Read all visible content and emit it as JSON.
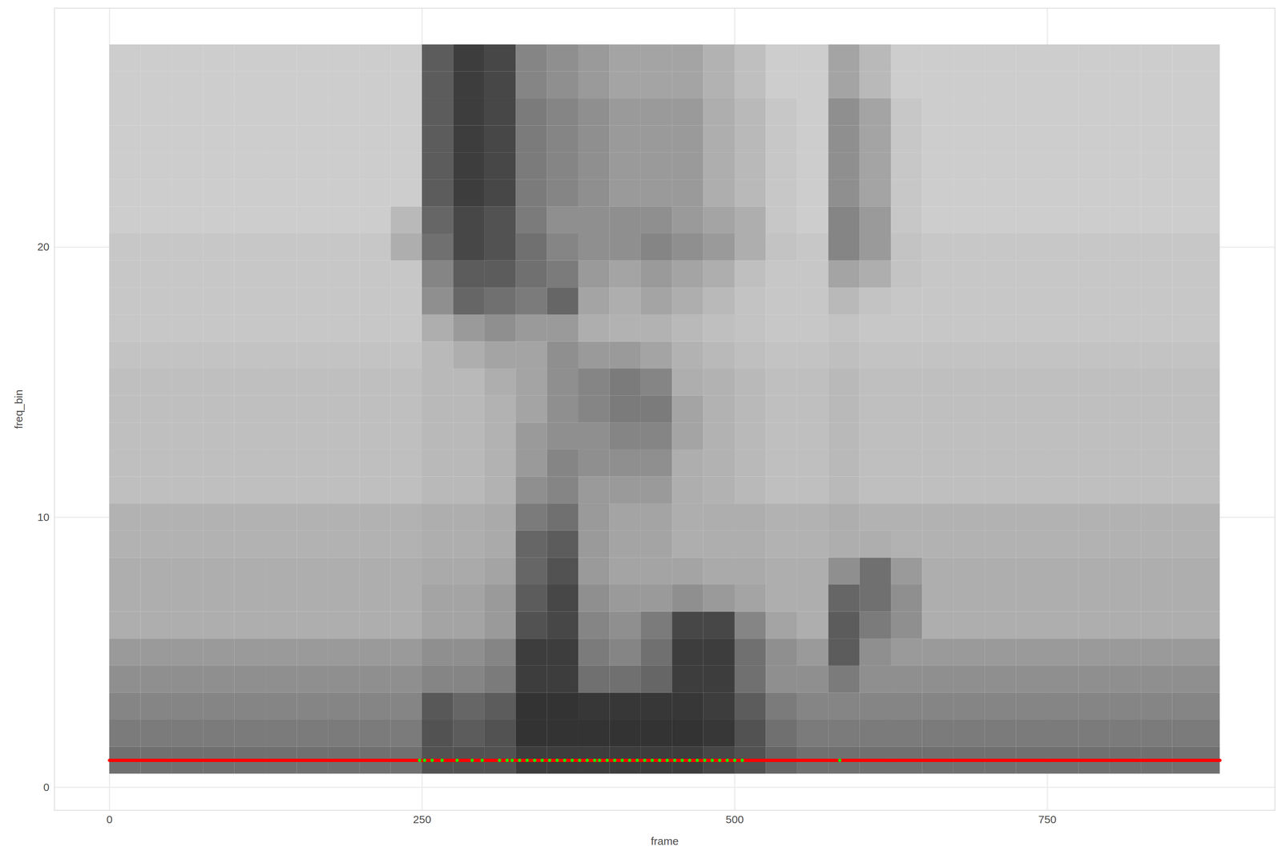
{
  "chart_data": {
    "type": "heatmap",
    "x_label": "frame",
    "y_label": "freq_bin",
    "xlim": [
      -44,
      932
    ],
    "ylim": [
      -0.85,
      28.85
    ],
    "xticks": [
      0,
      250,
      500,
      750
    ],
    "yticks": [
      0,
      10,
      20
    ],
    "grid": true,
    "fill_range": [
      0,
      1
    ],
    "frame_edges": [
      0,
      25,
      50,
      75,
      100,
      125,
      150,
      175,
      200,
      225,
      250,
      275,
      300,
      325,
      350,
      375,
      400,
      425,
      450,
      475,
      500,
      525,
      550,
      575,
      600,
      625,
      650,
      675,
      700,
      725,
      750,
      775,
      800,
      825,
      850,
      875,
      888
    ],
    "freq_edges": [
      0.5,
      1.5,
      2.5,
      3.5,
      4.5,
      5.5,
      6.5,
      7.5,
      8.5,
      9.5,
      10.5,
      11.5,
      12.5,
      13.5,
      14.5,
      15.5,
      16.5,
      17.5,
      18.5,
      19.5,
      20.5,
      21.5,
      22.5,
      23.5,
      24.5,
      25.5,
      26.5,
      27.5
    ],
    "intensity": [
      [
        0.6,
        0.6,
        0.6,
        0.6,
        0.6,
        0.6,
        0.6,
        0.6,
        0.6,
        0.6,
        0.75,
        0.75,
        0.75,
        0.85,
        0.85,
        0.85,
        0.85,
        0.85,
        0.85,
        0.8,
        0.75,
        0.65,
        0.6,
        0.6,
        0.6,
        0.6,
        0.6,
        0.6,
        0.6,
        0.6,
        0.6,
        0.6,
        0.6,
        0.6,
        0.6,
        0.6
      ],
      [
        0.55,
        0.55,
        0.55,
        0.55,
        0.55,
        0.55,
        0.55,
        0.55,
        0.55,
        0.55,
        0.75,
        0.7,
        0.75,
        0.9,
        0.9,
        0.9,
        0.9,
        0.9,
        0.9,
        0.88,
        0.75,
        0.6,
        0.55,
        0.55,
        0.55,
        0.55,
        0.55,
        0.55,
        0.55,
        0.55,
        0.55,
        0.55,
        0.55,
        0.55,
        0.55,
        0.55
      ],
      [
        0.5,
        0.5,
        0.5,
        0.5,
        0.5,
        0.5,
        0.5,
        0.5,
        0.5,
        0.5,
        0.72,
        0.65,
        0.7,
        0.9,
        0.9,
        0.88,
        0.88,
        0.88,
        0.88,
        0.85,
        0.7,
        0.55,
        0.5,
        0.5,
        0.5,
        0.5,
        0.5,
        0.5,
        0.5,
        0.5,
        0.5,
        0.5,
        0.5,
        0.5,
        0.5,
        0.5
      ],
      [
        0.45,
        0.45,
        0.45,
        0.45,
        0.45,
        0.45,
        0.45,
        0.45,
        0.45,
        0.45,
        0.5,
        0.5,
        0.55,
        0.85,
        0.85,
        0.6,
        0.6,
        0.65,
        0.85,
        0.85,
        0.6,
        0.45,
        0.45,
        0.55,
        0.45,
        0.45,
        0.45,
        0.45,
        0.45,
        0.45,
        0.45,
        0.45,
        0.45,
        0.45,
        0.45,
        0.45
      ],
      [
        0.4,
        0.4,
        0.4,
        0.4,
        0.4,
        0.4,
        0.4,
        0.4,
        0.4,
        0.4,
        0.45,
        0.45,
        0.5,
        0.85,
        0.85,
        0.55,
        0.5,
        0.6,
        0.85,
        0.85,
        0.6,
        0.45,
        0.4,
        0.7,
        0.45,
        0.4,
        0.4,
        0.4,
        0.4,
        0.4,
        0.4,
        0.4,
        0.4,
        0.4,
        0.4,
        0.4
      ],
      [
        0.3,
        0.3,
        0.3,
        0.3,
        0.3,
        0.3,
        0.3,
        0.3,
        0.3,
        0.3,
        0.35,
        0.35,
        0.4,
        0.75,
        0.8,
        0.5,
        0.45,
        0.55,
        0.8,
        0.8,
        0.5,
        0.35,
        0.3,
        0.7,
        0.55,
        0.45,
        0.3,
        0.3,
        0.3,
        0.3,
        0.3,
        0.3,
        0.3,
        0.3,
        0.3,
        0.3
      ],
      [
        0.3,
        0.3,
        0.3,
        0.3,
        0.3,
        0.3,
        0.3,
        0.3,
        0.3,
        0.3,
        0.35,
        0.35,
        0.4,
        0.7,
        0.8,
        0.45,
        0.4,
        0.4,
        0.45,
        0.4,
        0.35,
        0.3,
        0.3,
        0.65,
        0.6,
        0.45,
        0.3,
        0.3,
        0.3,
        0.3,
        0.3,
        0.3,
        0.3,
        0.3,
        0.3,
        0.3
      ],
      [
        0.3,
        0.3,
        0.3,
        0.3,
        0.3,
        0.3,
        0.3,
        0.3,
        0.3,
        0.3,
        0.32,
        0.32,
        0.35,
        0.65,
        0.75,
        0.4,
        0.35,
        0.35,
        0.35,
        0.32,
        0.32,
        0.3,
        0.3,
        0.45,
        0.6,
        0.4,
        0.3,
        0.3,
        0.3,
        0.3,
        0.3,
        0.3,
        0.3,
        0.3,
        0.3,
        0.3
      ],
      [
        0.28,
        0.28,
        0.28,
        0.28,
        0.28,
        0.28,
        0.28,
        0.28,
        0.28,
        0.28,
        0.3,
        0.3,
        0.32,
        0.65,
        0.7,
        0.4,
        0.35,
        0.35,
        0.3,
        0.3,
        0.3,
        0.28,
        0.28,
        0.3,
        0.3,
        0.28,
        0.28,
        0.28,
        0.28,
        0.28,
        0.28,
        0.28,
        0.28,
        0.28,
        0.28,
        0.28
      ],
      [
        0.28,
        0.28,
        0.28,
        0.28,
        0.28,
        0.28,
        0.28,
        0.28,
        0.28,
        0.28,
        0.3,
        0.3,
        0.32,
        0.55,
        0.6,
        0.4,
        0.35,
        0.35,
        0.3,
        0.3,
        0.3,
        0.28,
        0.28,
        0.3,
        0.28,
        0.28,
        0.28,
        0.28,
        0.28,
        0.28,
        0.28,
        0.28,
        0.28,
        0.28,
        0.28,
        0.28
      ],
      [
        0.22,
        0.22,
        0.22,
        0.22,
        0.22,
        0.22,
        0.22,
        0.22,
        0.22,
        0.22,
        0.25,
        0.25,
        0.28,
        0.45,
        0.5,
        0.4,
        0.4,
        0.4,
        0.3,
        0.28,
        0.25,
        0.22,
        0.22,
        0.25,
        0.22,
        0.22,
        0.22,
        0.22,
        0.22,
        0.22,
        0.22,
        0.22,
        0.22,
        0.22,
        0.22,
        0.22
      ],
      [
        0.22,
        0.22,
        0.22,
        0.22,
        0.22,
        0.22,
        0.22,
        0.22,
        0.22,
        0.22,
        0.25,
        0.25,
        0.28,
        0.4,
        0.5,
        0.45,
        0.45,
        0.45,
        0.3,
        0.28,
        0.25,
        0.22,
        0.22,
        0.25,
        0.22,
        0.22,
        0.22,
        0.22,
        0.22,
        0.22,
        0.22,
        0.22,
        0.22,
        0.22,
        0.22,
        0.22
      ],
      [
        0.22,
        0.22,
        0.22,
        0.22,
        0.22,
        0.22,
        0.22,
        0.22,
        0.22,
        0.22,
        0.25,
        0.25,
        0.28,
        0.4,
        0.45,
        0.45,
        0.5,
        0.5,
        0.35,
        0.28,
        0.25,
        0.22,
        0.22,
        0.25,
        0.22,
        0.22,
        0.22,
        0.22,
        0.22,
        0.22,
        0.22,
        0.22,
        0.22,
        0.22,
        0.22,
        0.22
      ],
      [
        0.22,
        0.22,
        0.22,
        0.22,
        0.22,
        0.22,
        0.22,
        0.22,
        0.22,
        0.22,
        0.25,
        0.25,
        0.28,
        0.35,
        0.45,
        0.5,
        0.55,
        0.55,
        0.35,
        0.28,
        0.25,
        0.22,
        0.22,
        0.25,
        0.22,
        0.22,
        0.22,
        0.22,
        0.22,
        0.22,
        0.22,
        0.22,
        0.22,
        0.22,
        0.22,
        0.22
      ],
      [
        0.22,
        0.22,
        0.22,
        0.22,
        0.22,
        0.22,
        0.22,
        0.22,
        0.22,
        0.22,
        0.25,
        0.25,
        0.3,
        0.35,
        0.45,
        0.5,
        0.55,
        0.5,
        0.3,
        0.28,
        0.25,
        0.22,
        0.22,
        0.25,
        0.22,
        0.22,
        0.22,
        0.22,
        0.22,
        0.22,
        0.22,
        0.22,
        0.22,
        0.22,
        0.22,
        0.22
      ],
      [
        0.2,
        0.2,
        0.2,
        0.2,
        0.2,
        0.2,
        0.2,
        0.2,
        0.2,
        0.2,
        0.25,
        0.3,
        0.35,
        0.35,
        0.45,
        0.4,
        0.4,
        0.35,
        0.28,
        0.25,
        0.22,
        0.2,
        0.2,
        0.22,
        0.2,
        0.2,
        0.2,
        0.2,
        0.2,
        0.2,
        0.2,
        0.2,
        0.2,
        0.2,
        0.2,
        0.2
      ],
      [
        0.18,
        0.18,
        0.18,
        0.18,
        0.18,
        0.18,
        0.18,
        0.18,
        0.18,
        0.18,
        0.3,
        0.4,
        0.45,
        0.4,
        0.4,
        0.3,
        0.28,
        0.28,
        0.25,
        0.22,
        0.2,
        0.18,
        0.18,
        0.2,
        0.18,
        0.18,
        0.18,
        0.18,
        0.18,
        0.18,
        0.18,
        0.18,
        0.18,
        0.18,
        0.18,
        0.18
      ],
      [
        0.18,
        0.18,
        0.18,
        0.18,
        0.18,
        0.18,
        0.18,
        0.18,
        0.18,
        0.18,
        0.45,
        0.65,
        0.6,
        0.55,
        0.65,
        0.35,
        0.3,
        0.35,
        0.3,
        0.25,
        0.2,
        0.18,
        0.18,
        0.25,
        0.2,
        0.18,
        0.18,
        0.18,
        0.18,
        0.18,
        0.18,
        0.18,
        0.18,
        0.18,
        0.18,
        0.18
      ],
      [
        0.18,
        0.18,
        0.18,
        0.18,
        0.18,
        0.18,
        0.18,
        0.18,
        0.18,
        0.18,
        0.5,
        0.7,
        0.7,
        0.6,
        0.55,
        0.4,
        0.35,
        0.4,
        0.35,
        0.3,
        0.22,
        0.18,
        0.18,
        0.35,
        0.3,
        0.2,
        0.18,
        0.18,
        0.18,
        0.18,
        0.18,
        0.18,
        0.18,
        0.18,
        0.18,
        0.18
      ],
      [
        0.18,
        0.18,
        0.18,
        0.18,
        0.18,
        0.18,
        0.18,
        0.18,
        0.18,
        0.3,
        0.6,
        0.8,
        0.75,
        0.6,
        0.5,
        0.45,
        0.45,
        0.5,
        0.45,
        0.4,
        0.3,
        0.2,
        0.18,
        0.5,
        0.4,
        0.2,
        0.18,
        0.18,
        0.18,
        0.18,
        0.18,
        0.18,
        0.18,
        0.18,
        0.18,
        0.18
      ],
      [
        0.15,
        0.15,
        0.15,
        0.15,
        0.15,
        0.15,
        0.15,
        0.15,
        0.15,
        0.25,
        0.65,
        0.8,
        0.75,
        0.55,
        0.45,
        0.45,
        0.45,
        0.45,
        0.4,
        0.35,
        0.3,
        0.18,
        0.15,
        0.5,
        0.4,
        0.18,
        0.15,
        0.15,
        0.15,
        0.15,
        0.15,
        0.15,
        0.15,
        0.15,
        0.15,
        0.15
      ],
      [
        0.15,
        0.15,
        0.15,
        0.15,
        0.15,
        0.15,
        0.15,
        0.15,
        0.15,
        0.15,
        0.7,
        0.85,
        0.8,
        0.55,
        0.5,
        0.45,
        0.4,
        0.4,
        0.4,
        0.3,
        0.25,
        0.18,
        0.15,
        0.45,
        0.35,
        0.18,
        0.15,
        0.15,
        0.15,
        0.15,
        0.15,
        0.15,
        0.15,
        0.15,
        0.15,
        0.15
      ],
      [
        0.15,
        0.15,
        0.15,
        0.15,
        0.15,
        0.15,
        0.15,
        0.15,
        0.15,
        0.15,
        0.7,
        0.85,
        0.8,
        0.55,
        0.5,
        0.45,
        0.4,
        0.4,
        0.4,
        0.3,
        0.25,
        0.18,
        0.15,
        0.45,
        0.35,
        0.18,
        0.15,
        0.15,
        0.15,
        0.15,
        0.15,
        0.15,
        0.15,
        0.15,
        0.15,
        0.15
      ],
      [
        0.15,
        0.15,
        0.15,
        0.15,
        0.15,
        0.15,
        0.15,
        0.15,
        0.15,
        0.15,
        0.7,
        0.85,
        0.8,
        0.55,
        0.5,
        0.45,
        0.4,
        0.4,
        0.4,
        0.3,
        0.25,
        0.18,
        0.15,
        0.45,
        0.35,
        0.18,
        0.15,
        0.15,
        0.15,
        0.15,
        0.15,
        0.15,
        0.15,
        0.15,
        0.15,
        0.15
      ],
      [
        0.15,
        0.15,
        0.15,
        0.15,
        0.15,
        0.15,
        0.15,
        0.15,
        0.15,
        0.15,
        0.7,
        0.85,
        0.8,
        0.55,
        0.5,
        0.45,
        0.4,
        0.4,
        0.4,
        0.3,
        0.25,
        0.18,
        0.15,
        0.45,
        0.35,
        0.18,
        0.15,
        0.15,
        0.15,
        0.15,
        0.15,
        0.15,
        0.15,
        0.15,
        0.15,
        0.15
      ],
      [
        0.15,
        0.15,
        0.15,
        0.15,
        0.15,
        0.15,
        0.15,
        0.15,
        0.15,
        0.15,
        0.7,
        0.85,
        0.8,
        0.5,
        0.45,
        0.4,
        0.35,
        0.35,
        0.35,
        0.28,
        0.22,
        0.15,
        0.15,
        0.35,
        0.25,
        0.15,
        0.15,
        0.15,
        0.15,
        0.15,
        0.15,
        0.15,
        0.15,
        0.15,
        0.15,
        0.15
      ],
      [
        0.15,
        0.15,
        0.15,
        0.15,
        0.15,
        0.15,
        0.15,
        0.15,
        0.15,
        0.15,
        0.7,
        0.85,
        0.8,
        0.5,
        0.45,
        0.4,
        0.35,
        0.35,
        0.35,
        0.28,
        0.22,
        0.15,
        0.15,
        0.35,
        0.25,
        0.15,
        0.15,
        0.15,
        0.15,
        0.15,
        0.15,
        0.15,
        0.15,
        0.15,
        0.15,
        0.15
      ]
    ],
    "red_track": {
      "x": [
        0,
        888
      ],
      "y": 1,
      "color": "#ff0000"
    },
    "green_points": {
      "x": [
        248,
        252,
        258,
        266,
        278,
        290,
        298,
        312,
        318,
        322,
        328,
        334,
        340,
        346,
        352,
        358,
        364,
        370,
        376,
        382,
        388,
        392,
        398,
        404,
        410,
        416,
        422,
        428,
        434,
        440,
        446,
        452,
        458,
        464,
        470,
        476,
        482,
        488,
        494,
        500,
        506,
        584
      ],
      "y": 1,
      "color": "#00ff00"
    }
  }
}
